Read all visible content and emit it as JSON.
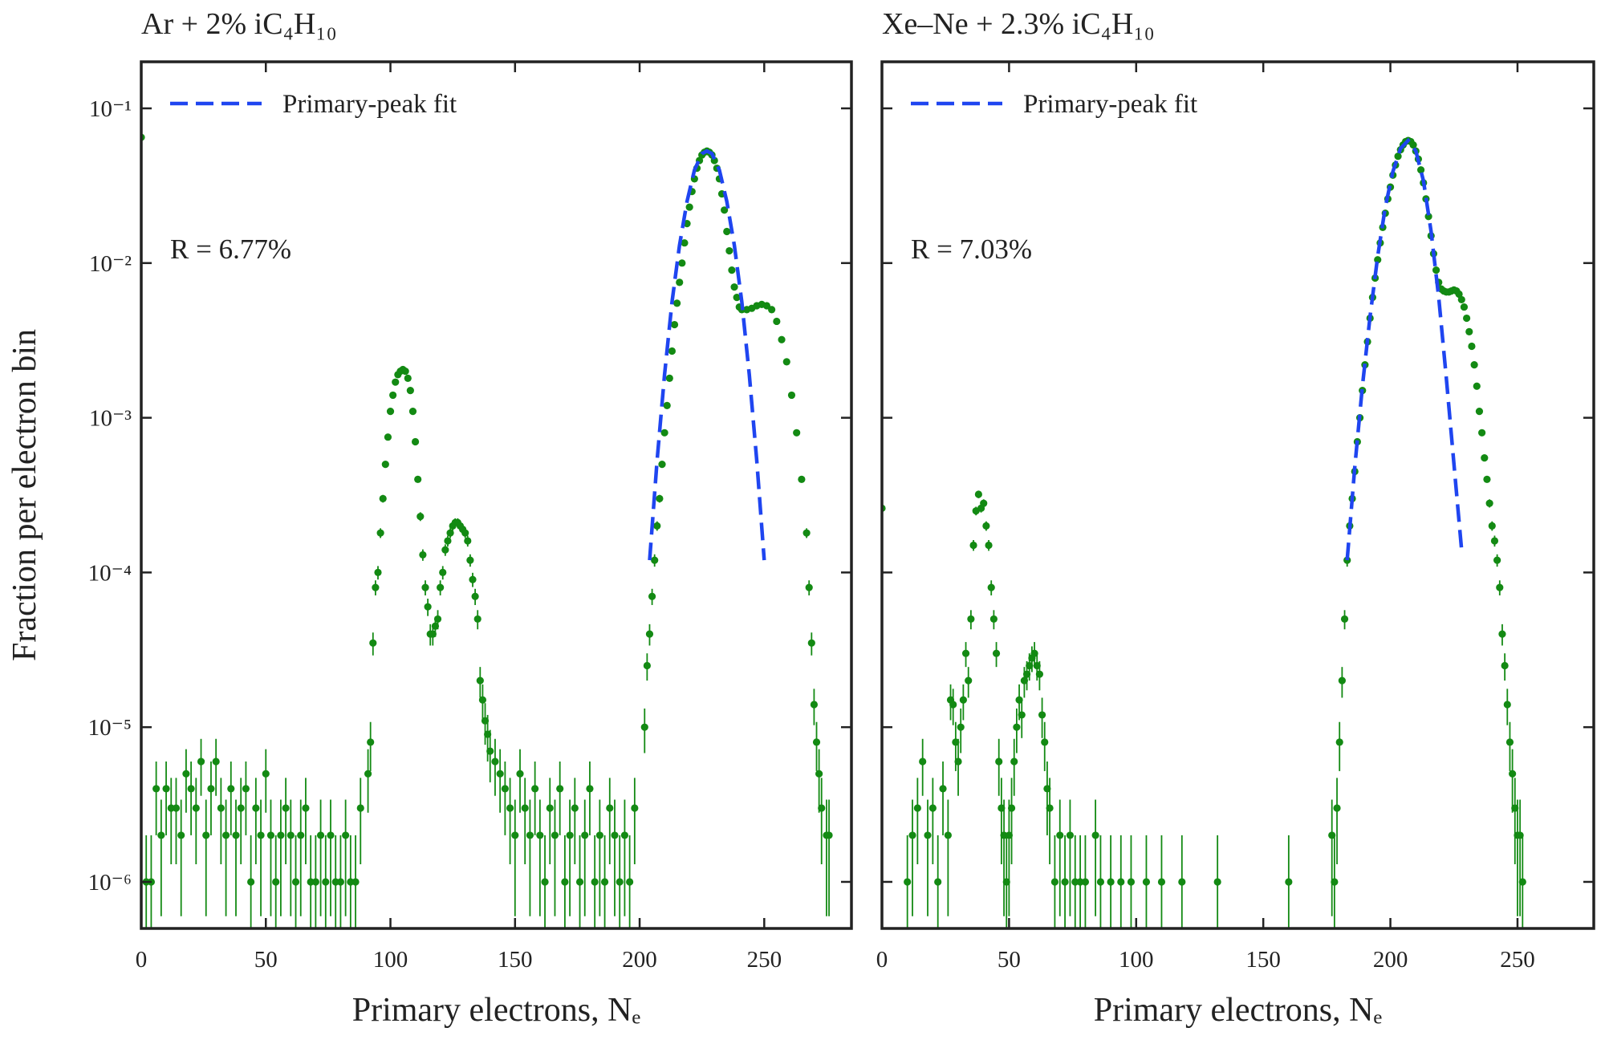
{
  "chart_data": [
    {
      "type": "scatter",
      "title": "Ar + 2% iC₄H₁₀",
      "xlabel": "Primary electrons, Nₑ",
      "ylabel": "Fraction per electron bin",
      "annotation": "R = 6.77%",
      "log_y": true,
      "legend": "upper left",
      "xlim": [
        0,
        285
      ],
      "ylim": [
        5e-07,
        0.2
      ],
      "xticks": [
        0,
        50,
        100,
        150,
        200,
        250
      ],
      "yticks": [
        {
          "value": 1e-06,
          "label": "10⁻⁶"
        },
        {
          "value": 1e-05,
          "label": "10⁻⁵"
        },
        {
          "value": 0.0001,
          "label": "10⁻⁴"
        },
        {
          "value": 0.001,
          "label": "10⁻³"
        },
        {
          "value": 0.01,
          "label": "10⁻²"
        },
        {
          "value": 0.1,
          "label": "10⁻¹"
        }
      ],
      "points": {
        "color": "#138a13",
        "x": [
          0,
          2,
          4,
          6,
          8,
          10,
          12,
          14,
          16,
          18,
          20,
          22,
          24,
          26,
          28,
          30,
          32,
          34,
          36,
          38,
          40,
          42,
          44,
          46,
          48,
          50,
          52,
          54,
          56,
          58,
          60,
          62,
          64,
          66,
          68,
          70,
          72,
          74,
          76,
          78,
          80,
          82,
          84,
          86,
          88,
          91,
          92,
          93,
          94,
          95,
          96,
          97,
          98,
          99,
          100,
          101,
          102,
          103,
          104,
          105,
          106,
          107,
          108,
          109,
          110,
          111,
          112,
          113,
          114,
          115,
          116,
          117,
          118,
          119,
          120,
          121,
          122,
          123,
          124,
          125,
          126,
          127,
          128,
          129,
          130,
          131,
          132,
          133,
          134,
          135,
          136,
          137,
          138,
          139,
          140,
          142,
          144,
          146,
          148,
          150,
          152,
          154,
          156,
          158,
          160,
          162,
          164,
          166,
          168,
          170,
          172,
          174,
          176,
          178,
          180,
          182,
          184,
          186,
          188,
          190,
          192,
          194,
          196,
          198,
          202,
          203,
          204,
          205,
          206,
          207,
          208,
          209,
          210,
          211,
          212,
          213,
          214,
          215,
          216,
          217,
          218,
          219,
          220,
          221,
          222,
          223,
          224,
          225,
          226,
          227,
          228,
          229,
          230,
          231,
          232,
          233,
          234,
          235,
          236,
          237,
          238,
          239,
          240,
          241,
          243,
          245,
          247,
          249,
          251,
          253,
          255,
          257,
          259,
          261,
          263,
          265,
          267,
          268,
          269,
          270,
          271,
          272,
          273,
          275,
          276
        ],
        "values": [
          0.065,
          1e-06,
          1e-06,
          4e-06,
          2e-06,
          4e-06,
          3e-06,
          3e-06,
          2e-06,
          5e-06,
          4e-06,
          3e-06,
          6e-06,
          2e-06,
          4e-06,
          6e-06,
          3e-06,
          2e-06,
          4e-06,
          2e-06,
          3e-06,
          4e-06,
          1e-06,
          3e-06,
          2e-06,
          5e-06,
          2e-06,
          1e-06,
          2e-06,
          3e-06,
          2e-06,
          1e-06,
          2e-06,
          3e-06,
          1e-06,
          1e-06,
          2e-06,
          1e-06,
          2e-06,
          1e-06,
          1e-06,
          2e-06,
          1e-06,
          1e-06,
          3e-06,
          5e-06,
          8e-06,
          3.5e-05,
          8e-05,
          0.0001,
          0.00018,
          0.0003,
          0.0005,
          0.00075,
          0.0011,
          0.0014,
          0.0017,
          0.0019,
          0.002,
          0.00205,
          0.002,
          0.0018,
          0.0015,
          0.0011,
          0.0007,
          0.0004,
          0.00023,
          0.00013,
          8e-05,
          6e-05,
          4e-05,
          4e-05,
          4.5e-05,
          5e-05,
          8e-05,
          0.0001,
          0.00014,
          0.00016,
          0.00018,
          0.0002,
          0.00021,
          0.00021,
          0.0002,
          0.00019,
          0.00018,
          0.00016,
          0.00012,
          9e-05,
          7e-05,
          5e-05,
          2e-05,
          1.5e-05,
          1.1e-05,
          9e-06,
          7e-06,
          6e-06,
          5e-06,
          4e-06,
          3e-06,
          2e-06,
          5e-06,
          3e-06,
          2e-06,
          4e-06,
          2e-06,
          1e-06,
          3e-06,
          2e-06,
          4e-06,
          1e-06,
          2e-06,
          3e-06,
          1e-06,
          2e-06,
          4e-06,
          1e-06,
          2e-06,
          1e-06,
          3e-06,
          2e-06,
          1e-06,
          2e-06,
          1e-06,
          3e-06,
          1e-05,
          2.5e-05,
          4e-05,
          7e-05,
          0.00012,
          0.0002,
          0.0003,
          0.0005,
          0.0008,
          0.0012,
          0.0018,
          0.0027,
          0.004,
          0.0055,
          0.0075,
          0.01,
          0.0135,
          0.018,
          0.023,
          0.029,
          0.035,
          0.041,
          0.046,
          0.05,
          0.052,
          0.053,
          0.052,
          0.05,
          0.046,
          0.041,
          0.035,
          0.028,
          0.022,
          0.016,
          0.012,
          0.009,
          0.007,
          0.006,
          0.0052,
          0.005,
          0.005,
          0.0051,
          0.0053,
          0.0054,
          0.0053,
          0.005,
          0.0042,
          0.0032,
          0.0023,
          0.0014,
          0.0008,
          0.0004,
          0.00018,
          8e-05,
          3.5e-05,
          1.4e-05,
          8e-06,
          5e-06,
          3e-06,
          2e-06,
          2e-06
        ],
        "errors": [
          0.00025,
          1e-06,
          1e-06,
          2e-06,
          1.4e-06,
          2e-06,
          1.7e-06,
          1.7e-06,
          1.4e-06,
          2.2e-06,
          2e-06,
          1.7e-06,
          2.4e-06,
          1.4e-06,
          2e-06,
          2.4e-06,
          1.7e-06,
          1.4e-06,
          2e-06,
          1.4e-06,
          1.7e-06,
          2e-06,
          1e-06,
          1.7e-06,
          1.4e-06,
          2.2e-06,
          1.4e-06,
          1e-06,
          1.4e-06,
          1.7e-06,
          1.4e-06,
          1e-06,
          1.4e-06,
          1.7e-06,
          1e-06,
          1e-06,
          1.4e-06,
          1e-06,
          1.4e-06,
          1e-06,
          1e-06,
          1.4e-06,
          1e-06,
          1e-06,
          1.7e-06,
          2.2e-06,
          2.8e-06,
          5.9e-06,
          8.9e-06,
          1e-05,
          1.3e-05,
          1.7e-05,
          2.2e-05,
          2.7e-05,
          3.3e-05,
          3.7e-05,
          4.1e-05,
          4.4e-05,
          4.5e-05,
          4.5e-05,
          4.5e-05,
          4.2e-05,
          3.9e-05,
          3.3e-05,
          2.6e-05,
          2e-05,
          1.5e-05,
          1.1e-05,
          8.9e-06,
          7.7e-06,
          6.3e-06,
          6.3e-06,
          6.7e-06,
          7.1e-06,
          8.9e-06,
          1e-05,
          1.2e-05,
          1.3e-05,
          1.3e-05,
          1.4e-05,
          1.4e-05,
          1.4e-05,
          1.4e-05,
          1.4e-05,
          1.3e-05,
          1.3e-05,
          1.1e-05,
          9.5e-06,
          8.4e-06,
          7.1e-06,
          4.5e-06,
          3.9e-06,
          3.3e-06,
          3e-06,
          2.6e-06,
          2.4e-06,
          2.2e-06,
          2e-06,
          1.7e-06,
          1.4e-06,
          2.2e-06,
          1.7e-06,
          1.4e-06,
          2e-06,
          1.4e-06,
          1e-06,
          1.7e-06,
          1.4e-06,
          2e-06,
          1e-06,
          1.4e-06,
          1.7e-06,
          1e-06,
          1.4e-06,
          2e-06,
          1e-06,
          1.4e-06,
          1e-06,
          1.7e-06,
          1.4e-06,
          1e-06,
          1.4e-06,
          1e-06,
          1.7e-06,
          3.2e-06,
          5e-06,
          6.3e-06,
          8.4e-06,
          1.1e-05,
          1.4e-05,
          1.7e-05,
          2.2e-05,
          2.8e-05,
          3.5e-05,
          4.2e-05,
          5.2e-05,
          6.3e-05,
          7.4e-05,
          8.7e-05,
          0.0001,
          0.00012,
          0.00013,
          0.00015,
          0.00017,
          0.00019,
          0.0002,
          0.00021,
          0.00022,
          0.00023,
          0.00023,
          0.00023,
          0.00022,
          0.00021,
          0.0002,
          0.00019,
          0.00017,
          0.00015,
          0.00013,
          0.00011,
          9.5e-05,
          8.4e-05,
          7.7e-05,
          7.2e-05,
          7.1e-05,
          7.1e-05,
          7.1e-05,
          7.3e-05,
          7.3e-05,
          7.3e-05,
          7.1e-05,
          6.5e-05,
          5.7e-05,
          4.8e-05,
          3.7e-05,
          2.8e-05,
          2e-05,
          1.3e-05,
          8.9e-06,
          5.9e-06,
          3.7e-06,
          2.8e-06,
          2.2e-06,
          1.7e-06,
          1.4e-06,
          1.4e-06
        ]
      },
      "fit": {
        "name": "Primary-peak fit",
        "color": "#1f45f0",
        "style": "dashed",
        "x": [
          204,
          207,
          210,
          213,
          216,
          219,
          222,
          225,
          227,
          229,
          232,
          235,
          238,
          241,
          244,
          247,
          250
        ],
        "values": [
          0.00012,
          0.00053,
          0.0019,
          0.0056,
          0.013,
          0.025,
          0.04,
          0.051,
          0.053,
          0.051,
          0.04,
          0.025,
          0.013,
          0.0056,
          0.0019,
          0.00053,
          0.00012
        ]
      }
    },
    {
      "type": "scatter",
      "title": "Xe–Ne + 2.3% iC₄H₁₀",
      "xlabel": "Primary electrons, Nₑ",
      "annotation": "R = 7.03%",
      "log_y": true,
      "legend": "upper left",
      "xlim": [
        0,
        280
      ],
      "ylim": [
        5e-07,
        0.2
      ],
      "xticks": [
        0,
        50,
        100,
        150,
        200,
        250
      ],
      "yticks": [
        1e-06,
        1e-05,
        0.0001,
        0.001,
        0.01,
        0.1
      ],
      "points": {
        "color": "#138a13",
        "x": [
          0,
          10,
          12,
          14,
          16,
          18,
          20,
          22,
          24,
          26,
          27,
          28,
          29,
          30,
          31,
          32,
          33,
          34,
          35,
          36,
          37,
          38,
          39,
          40,
          41,
          42,
          43,
          44,
          45,
          46,
          47,
          48,
          49,
          50,
          51,
          52,
          53,
          54,
          55,
          56,
          57,
          58,
          59,
          60,
          61,
          62,
          63,
          64,
          65,
          66,
          68,
          70,
          72,
          74,
          76,
          78,
          80,
          84,
          86,
          90,
          94,
          98,
          104,
          110,
          118,
          132,
          160,
          177,
          178,
          179,
          180,
          181,
          182,
          183,
          184,
          185,
          186,
          187,
          188,
          189,
          190,
          191,
          192,
          193,
          194,
          195,
          196,
          197,
          198,
          199,
          200,
          201,
          202,
          203,
          204,
          205,
          206,
          207,
          208,
          209,
          210,
          211,
          212,
          213,
          214,
          215,
          216,
          217,
          218,
          219,
          220,
          221,
          222,
          223,
          224,
          225,
          226,
          227,
          228,
          229,
          230,
          231,
          232,
          233,
          234,
          235,
          236,
          237,
          238,
          239,
          240,
          241,
          242,
          243,
          244,
          245,
          246,
          247,
          248,
          249,
          250,
          251,
          252
        ],
        "values": [
          0.00026,
          1e-06,
          2e-06,
          3e-06,
          6e-06,
          2e-06,
          3e-06,
          1e-06,
          4e-06,
          2e-06,
          1.5e-05,
          1.4e-05,
          8e-06,
          6e-06,
          1e-05,
          1.5e-05,
          3e-05,
          2e-05,
          5e-05,
          0.00015,
          0.00025,
          0.00032,
          0.00026,
          0.00028,
          0.0002,
          0.00015,
          8e-05,
          5e-05,
          3e-05,
          6e-06,
          3e-06,
          2e-06,
          1e-06,
          2e-06,
          3e-06,
          6e-06,
          1e-05,
          1.5e-05,
          1.2e-05,
          2e-05,
          2.2e-05,
          2.5e-05,
          2.8e-05,
          3e-05,
          2.5e-05,
          2.2e-05,
          1.2e-05,
          8e-06,
          4e-06,
          3e-06,
          1e-06,
          2e-06,
          1e-06,
          2e-06,
          1e-06,
          1e-06,
          1e-06,
          2e-06,
          1e-06,
          1e-06,
          1e-06,
          1e-06,
          1e-06,
          1e-06,
          1e-06,
          1e-06,
          1e-06,
          2e-06,
          1e-06,
          3e-06,
          8e-06,
          2e-05,
          5e-05,
          0.00012,
          0.0002,
          0.0003,
          0.00045,
          0.0007,
          0.001,
          0.0015,
          0.0022,
          0.0031,
          0.0044,
          0.006,
          0.008,
          0.0105,
          0.0135,
          0.017,
          0.021,
          0.026,
          0.031,
          0.037,
          0.043,
          0.049,
          0.054,
          0.058,
          0.061,
          0.062,
          0.061,
          0.058,
          0.053,
          0.047,
          0.04,
          0.033,
          0.026,
          0.02,
          0.015,
          0.0115,
          0.009,
          0.0075,
          0.0068,
          0.0066,
          0.0065,
          0.0065,
          0.0066,
          0.0067,
          0.0066,
          0.0063,
          0.0058,
          0.0052,
          0.0044,
          0.0036,
          0.0029,
          0.0022,
          0.0016,
          0.0011,
          0.0008,
          0.00055,
          0.0004,
          0.00028,
          0.0002,
          0.00016,
          0.00012,
          8e-05,
          4e-05,
          2.5e-05,
          1.4e-05,
          8e-06,
          5e-06,
          3e-06,
          2e-06,
          2e-06,
          1e-06
        ],
        "errors": [
          1.6e-05,
          1e-06,
          1.4e-06,
          1.7e-06,
          2.4e-06,
          1.4e-06,
          1.7e-06,
          1e-06,
          2e-06,
          1.4e-06,
          3.9e-06,
          3.7e-06,
          2.8e-06,
          2.4e-06,
          3.2e-06,
          3.9e-06,
          5.5e-06,
          4.5e-06,
          7.1e-06,
          1.2e-05,
          1.6e-05,
          1.8e-05,
          1.6e-05,
          1.7e-05,
          1.4e-05,
          1.2e-05,
          8.9e-06,
          7.1e-06,
          5.5e-06,
          2.4e-06,
          1.7e-06,
          1.4e-06,
          1e-06,
          1.4e-06,
          1.7e-06,
          2.4e-06,
          3.2e-06,
          3.9e-06,
          3.5e-06,
          4.5e-06,
          4.7e-06,
          5e-06,
          5.3e-06,
          5.5e-06,
          5e-06,
          4.7e-06,
          3.5e-06,
          2.8e-06,
          2e-06,
          1.7e-06,
          1e-06,
          1.4e-06,
          1e-06,
          1.4e-06,
          1e-06,
          1e-06,
          1e-06,
          1.4e-06,
          1e-06,
          1e-06,
          1e-06,
          1e-06,
          1e-06,
          1e-06,
          1e-06,
          1e-06,
          1e-06,
          1.4e-06,
          1e-06,
          1.7e-06,
          2.8e-06,
          4.5e-06,
          7.1e-06,
          1.1e-05,
          1.4e-05,
          1.7e-05,
          2.1e-05,
          2.6e-05,
          3.2e-05,
          3.9e-05,
          4.7e-05,
          5.6e-05,
          6.6e-05,
          7.7e-05,
          8.9e-05,
          0.0001,
          0.00012,
          0.00013,
          0.00014,
          0.00016,
          0.00018,
          0.00019,
          0.00021,
          0.00022,
          0.00023,
          0.00024,
          0.00025,
          0.00025,
          0.00025,
          0.00024,
          0.00023,
          0.00022,
          0.0002,
          0.00018,
          0.00016,
          0.00014,
          0.00012,
          0.00011,
          9.5e-05,
          8.7e-05,
          8.2e-05,
          8.1e-05,
          8.1e-05,
          8.1e-05,
          8.1e-05,
          8.2e-05,
          8.1e-05,
          7.9e-05,
          7.6e-05,
          7.2e-05,
          6.6e-05,
          6e-05,
          5.4e-05,
          4.7e-05,
          4e-05,
          3.3e-05,
          2.8e-05,
          2.3e-05,
          2e-05,
          1.7e-05,
          1.4e-05,
          1.3e-05,
          1.1e-05,
          8.9e-06,
          6.3e-06,
          5e-06,
          3.7e-06,
          2.8e-06,
          2.2e-06,
          1.7e-06,
          1.4e-06,
          1.4e-06,
          1e-06
        ]
      },
      "fit": {
        "name": "Primary-peak fit",
        "color": "#1f45f0",
        "style": "dashed",
        "x": [
          183,
          186,
          189,
          192,
          195,
          198,
          201,
          204,
          207,
          210,
          213,
          216,
          219,
          222,
          225,
          228
        ],
        "values": [
          0.00012,
          0.00048,
          0.0016,
          0.0045,
          0.011,
          0.023,
          0.039,
          0.055,
          0.062,
          0.053,
          0.034,
          0.016,
          0.006,
          0.0018,
          0.0005,
          0.00014
        ]
      }
    }
  ]
}
